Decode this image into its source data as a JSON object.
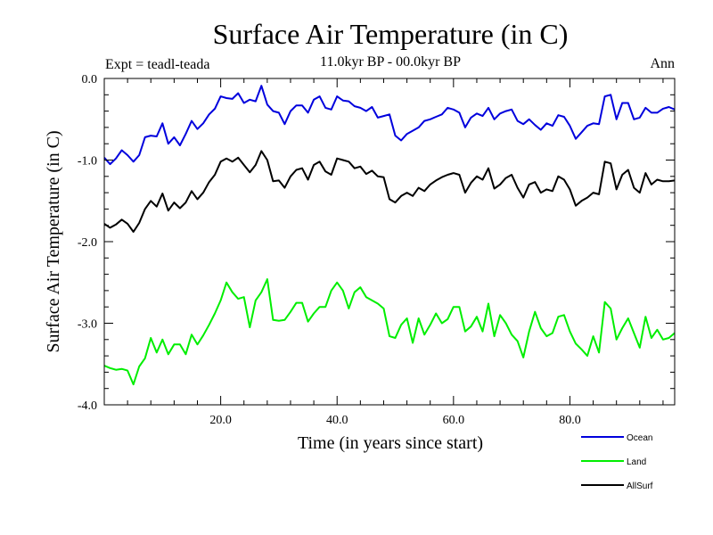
{
  "chart_data": {
    "type": "line",
    "title": "Surface Air Temperature (in C)",
    "subtitle": "11.0kyr BP - 00.0kyr BP",
    "experiment": "Expt = teadl-teada",
    "period": "Ann",
    "xlabel": "Time (in years since start)",
    "ylabel": "Surface Air Temperature (in C)",
    "xlim": [
      0,
      98
    ],
    "ylim": [
      -4.0,
      0.0
    ],
    "xticks": [
      20,
      40,
      60,
      80
    ],
    "xtick_labels": [
      "20.0",
      "40.0",
      "60.0",
      "80.0"
    ],
    "yticks": [
      0,
      -1,
      -2,
      -3,
      -4
    ],
    "ytick_labels": [
      "0.0",
      "-1.0",
      "-2.0",
      "-3.0",
      "-4.0"
    ],
    "x": [
      0,
      1,
      2,
      3,
      4,
      5,
      6,
      7,
      8,
      9,
      10,
      11,
      12,
      13,
      14,
      15,
      16,
      17,
      18,
      19,
      20,
      21,
      22,
      23,
      24,
      25,
      26,
      27,
      28,
      29,
      30,
      31,
      32,
      33,
      34,
      35,
      36,
      37,
      38,
      39,
      40,
      41,
      42,
      43,
      44,
      45,
      46,
      47,
      48,
      49,
      50,
      51,
      52,
      53,
      54,
      55,
      56,
      57,
      58,
      59,
      60,
      61,
      62,
      63,
      64,
      65,
      66,
      67,
      68,
      69,
      70,
      71,
      72,
      73,
      74,
      75,
      76,
      77,
      78,
      79,
      80,
      81,
      82,
      83,
      84,
      85,
      86,
      87,
      88,
      89,
      90,
      91,
      92,
      93,
      94,
      95,
      96,
      97,
      98
    ],
    "series": [
      {
        "name": "Ocean",
        "color": "#0000dd",
        "values": [
          -0.97,
          -1.05,
          -0.98,
          -0.88,
          -0.94,
          -1.02,
          -0.94,
          -0.72,
          -0.7,
          -0.71,
          -0.55,
          -0.8,
          -0.72,
          -0.82,
          -0.68,
          -0.52,
          -0.62,
          -0.55,
          -0.44,
          -0.37,
          -0.22,
          -0.24,
          -0.25,
          -0.18,
          -0.3,
          -0.26,
          -0.28,
          -0.09,
          -0.32,
          -0.4,
          -0.42,
          -0.56,
          -0.4,
          -0.33,
          -0.33,
          -0.42,
          -0.26,
          -0.22,
          -0.36,
          -0.38,
          -0.22,
          -0.27,
          -0.28,
          -0.34,
          -0.36,
          -0.4,
          -0.35,
          -0.48,
          -0.46,
          -0.44,
          -0.7,
          -0.76,
          -0.68,
          -0.64,
          -0.6,
          -0.52,
          -0.5,
          -0.47,
          -0.44,
          -0.36,
          -0.38,
          -0.42,
          -0.6,
          -0.48,
          -0.43,
          -0.46,
          -0.36,
          -0.5,
          -0.43,
          -0.4,
          -0.38,
          -0.52,
          -0.56,
          -0.5,
          -0.57,
          -0.63,
          -0.55,
          -0.58,
          -0.45,
          -0.47,
          -0.58,
          -0.74,
          -0.66,
          -0.58,
          -0.55,
          -0.56,
          -0.22,
          -0.2,
          -0.5,
          -0.3,
          -0.3,
          -0.5,
          -0.48,
          -0.36,
          -0.42,
          -0.42,
          -0.37,
          -0.35,
          -0.38
        ]
      },
      {
        "name": "Land",
        "color": "#00ee00",
        "values": [
          -3.52,
          -3.55,
          -3.57,
          -3.56,
          -3.58,
          -3.75,
          -3.53,
          -3.43,
          -3.18,
          -3.36,
          -3.2,
          -3.38,
          -3.26,
          -3.26,
          -3.38,
          -3.14,
          -3.26,
          -3.15,
          -3.02,
          -2.88,
          -2.72,
          -2.5,
          -2.62,
          -2.7,
          -2.68,
          -3.05,
          -2.72,
          -2.62,
          -2.46,
          -2.96,
          -2.97,
          -2.96,
          -2.86,
          -2.75,
          -2.75,
          -2.98,
          -2.88,
          -2.8,
          -2.8,
          -2.6,
          -2.5,
          -2.6,
          -2.82,
          -2.62,
          -2.56,
          -2.68,
          -2.72,
          -2.76,
          -2.82,
          -3.16,
          -3.18,
          -3.02,
          -2.94,
          -3.24,
          -2.94,
          -3.14,
          -3.02,
          -2.88,
          -3.0,
          -2.95,
          -2.8,
          -2.8,
          -3.1,
          -3.04,
          -2.92,
          -3.1,
          -2.76,
          -3.16,
          -2.9,
          -3.0,
          -3.14,
          -3.22,
          -3.42,
          -3.1,
          -2.86,
          -3.06,
          -3.16,
          -3.12,
          -2.92,
          -2.9,
          -3.1,
          -3.25,
          -3.32,
          -3.4,
          -3.16,
          -3.36,
          -2.74,
          -2.82,
          -3.2,
          -3.06,
          -2.94,
          -3.12,
          -3.3,
          -2.92,
          -3.18,
          -3.08,
          -3.2,
          -3.18,
          -3.12
        ]
      },
      {
        "name": "AllSurf",
        "color": "#000000",
        "values": [
          -1.78,
          -1.83,
          -1.79,
          -1.73,
          -1.78,
          -1.88,
          -1.77,
          -1.6,
          -1.5,
          -1.57,
          -1.41,
          -1.62,
          -1.52,
          -1.59,
          -1.52,
          -1.38,
          -1.48,
          -1.4,
          -1.27,
          -1.18,
          -1.02,
          -0.98,
          -1.02,
          -0.97,
          -1.06,
          -1.15,
          -1.06,
          -0.89,
          -1.0,
          -1.26,
          -1.25,
          -1.34,
          -1.2,
          -1.12,
          -1.1,
          -1.24,
          -1.06,
          -1.02,
          -1.14,
          -1.18,
          -0.98,
          -1.0,
          -1.02,
          -1.1,
          -1.08,
          -1.17,
          -1.13,
          -1.2,
          -1.21,
          -1.48,
          -1.52,
          -1.44,
          -1.4,
          -1.44,
          -1.34,
          -1.38,
          -1.3,
          -1.25,
          -1.21,
          -1.18,
          -1.16,
          -1.18,
          -1.4,
          -1.28,
          -1.2,
          -1.24,
          -1.1,
          -1.35,
          -1.3,
          -1.22,
          -1.18,
          -1.34,
          -1.46,
          -1.3,
          -1.27,
          -1.4,
          -1.36,
          -1.38,
          -1.2,
          -1.24,
          -1.36,
          -1.56,
          -1.5,
          -1.46,
          -1.4,
          -1.42,
          -1.02,
          -1.04,
          -1.36,
          -1.18,
          -1.12,
          -1.34,
          -1.4,
          -1.16,
          -1.3,
          -1.24,
          -1.26,
          -1.26,
          -1.25
        ]
      }
    ],
    "legend_position": "bottom-right"
  }
}
